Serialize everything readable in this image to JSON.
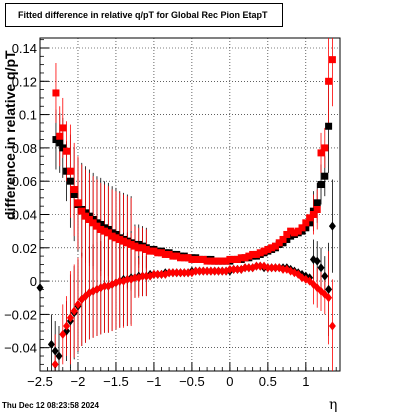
{
  "chart_data": {
    "type": "scatter",
    "title": "Fitted difference in relative q/pT for Global Rec Pion EtapT",
    "xlabel": "η",
    "ylabel": "difference in relative q/pT",
    "xlim": [
      -2.5,
      1.45
    ],
    "ylim": [
      -0.054,
      0.146
    ],
    "x_ticks": [
      -2.5,
      -2,
      -1.5,
      -1,
      -0.5,
      0,
      0.5,
      1
    ],
    "x_tick_labels": [
      "−2.5",
      "−2",
      "−1.5",
      "−1",
      "−0.5",
      "0",
      "0.5",
      "1"
    ],
    "y_ticks": [
      -0.04,
      -0.02,
      0,
      0.02,
      0.04,
      0.06,
      0.08,
      0.1,
      0.12,
      0.14
    ],
    "y_tick_labels": [
      "−0.04",
      "−0.02",
      "0",
      "0.02",
      "0.04",
      "0.06",
      "0.08",
      "0.1",
      "0.12",
      "0.14"
    ],
    "grid": true,
    "series": [
      {
        "marker": "square",
        "color": "#000000",
        "points": [
          [
            -2.29,
            0.085
          ],
          [
            -2.24,
            0.083
          ],
          [
            -2.2,
            0.08
          ],
          [
            -2.15,
            0.066
          ],
          [
            -2.1,
            0.06
          ],
          [
            -2.05,
            0.052
          ],
          [
            -2.0,
            0.046
          ],
          [
            -1.95,
            0.043
          ],
          [
            -1.9,
            0.041
          ],
          [
            -1.85,
            0.039
          ],
          [
            -1.8,
            0.037
          ],
          [
            -1.75,
            0.035
          ],
          [
            -1.7,
            0.034
          ],
          [
            -1.65,
            0.032
          ],
          [
            -1.6,
            0.031
          ],
          [
            -1.55,
            0.029
          ],
          [
            -1.5,
            0.028
          ],
          [
            -1.45,
            0.026
          ],
          [
            -1.4,
            0.025
          ],
          [
            -1.35,
            0.024
          ],
          [
            -1.3,
            0.023
          ],
          [
            -1.25,
            0.022
          ],
          [
            -1.2,
            0.022
          ],
          [
            -1.15,
            0.021
          ],
          [
            -1.1,
            0.02
          ],
          [
            -1.05,
            0.019
          ],
          [
            -1.0,
            0.019
          ],
          [
            -0.95,
            0.018
          ],
          [
            -0.9,
            0.018
          ],
          [
            -0.85,
            0.017
          ],
          [
            -0.8,
            0.017
          ],
          [
            -0.75,
            0.016
          ],
          [
            -0.7,
            0.016
          ],
          [
            -0.65,
            0.015
          ],
          [
            -0.6,
            0.015
          ],
          [
            -0.55,
            0.014
          ],
          [
            -0.5,
            0.014
          ],
          [
            -0.45,
            0.014
          ],
          [
            -0.4,
            0.013
          ],
          [
            -0.35,
            0.013
          ],
          [
            -0.3,
            0.013
          ],
          [
            -0.25,
            0.013
          ],
          [
            -0.2,
            0.012
          ],
          [
            -0.15,
            0.012
          ],
          [
            -0.1,
            0.012
          ],
          [
            -0.05,
            0.012
          ],
          [
            0.0,
            0.012
          ],
          [
            0.05,
            0.013
          ],
          [
            0.1,
            0.013
          ],
          [
            0.15,
            0.013
          ],
          [
            0.2,
            0.014
          ],
          [
            0.25,
            0.014
          ],
          [
            0.3,
            0.015
          ],
          [
            0.35,
            0.015
          ],
          [
            0.4,
            0.016
          ],
          [
            0.45,
            0.017
          ],
          [
            0.5,
            0.018
          ],
          [
            0.55,
            0.019
          ],
          [
            0.6,
            0.02
          ],
          [
            0.65,
            0.022
          ],
          [
            0.7,
            0.023
          ],
          [
            0.75,
            0.025
          ],
          [
            0.8,
            0.027
          ],
          [
            0.85,
            0.028
          ],
          [
            0.9,
            0.029
          ],
          [
            0.95,
            0.03
          ],
          [
            1.0,
            0.032
          ],
          [
            1.05,
            0.035
          ],
          [
            1.1,
            0.042
          ],
          [
            1.15,
            0.047
          ],
          [
            1.2,
            0.058
          ],
          [
            1.25,
            0.063
          ],
          [
            1.3,
            0.093
          ]
        ]
      },
      {
        "marker": "square",
        "color": "#ff0000",
        "points": [
          [
            -2.29,
            0.113
          ],
          [
            -2.24,
            0.087
          ],
          [
            -2.2,
            0.092
          ],
          [
            -2.15,
            0.078
          ],
          [
            -2.1,
            0.066
          ],
          [
            -2.05,
            0.055
          ],
          [
            -2.0,
            0.047
          ],
          [
            -1.95,
            0.042
          ],
          [
            -1.9,
            0.039
          ],
          [
            -1.85,
            0.037
          ],
          [
            -1.8,
            0.035
          ],
          [
            -1.75,
            0.033
          ],
          [
            -1.7,
            0.031
          ],
          [
            -1.65,
            0.03
          ],
          [
            -1.6,
            0.029
          ],
          [
            -1.55,
            0.027
          ],
          [
            -1.5,
            0.026
          ],
          [
            -1.45,
            0.025
          ],
          [
            -1.4,
            0.024
          ],
          [
            -1.35,
            0.023
          ],
          [
            -1.3,
            0.022
          ],
          [
            -1.25,
            0.021
          ],
          [
            -1.2,
            0.02
          ],
          [
            -1.15,
            0.02
          ],
          [
            -1.1,
            0.019
          ],
          [
            -1.05,
            0.018
          ],
          [
            -1.0,
            0.018
          ],
          [
            -0.95,
            0.017
          ],
          [
            -0.9,
            0.017
          ],
          [
            -0.85,
            0.016
          ],
          [
            -0.8,
            0.016
          ],
          [
            -0.75,
            0.015
          ],
          [
            -0.7,
            0.015
          ],
          [
            -0.65,
            0.014
          ],
          [
            -0.6,
            0.014
          ],
          [
            -0.55,
            0.014
          ],
          [
            -0.5,
            0.013
          ],
          [
            -0.45,
            0.013
          ],
          [
            -0.4,
            0.013
          ],
          [
            -0.35,
            0.013
          ],
          [
            -0.3,
            0.012
          ],
          [
            -0.25,
            0.012
          ],
          [
            -0.2,
            0.012
          ],
          [
            -0.15,
            0.012
          ],
          [
            -0.1,
            0.012
          ],
          [
            -0.05,
            0.012
          ],
          [
            0.0,
            0.013
          ],
          [
            0.05,
            0.013
          ],
          [
            0.1,
            0.013
          ],
          [
            0.15,
            0.014
          ],
          [
            0.2,
            0.014
          ],
          [
            0.25,
            0.015
          ],
          [
            0.3,
            0.016
          ],
          [
            0.35,
            0.016
          ],
          [
            0.4,
            0.017
          ],
          [
            0.45,
            0.018
          ],
          [
            0.5,
            0.019
          ],
          [
            0.55,
            0.02
          ],
          [
            0.6,
            0.021
          ],
          [
            0.65,
            0.023
          ],
          [
            0.7,
            0.025
          ],
          [
            0.75,
            0.028
          ],
          [
            0.8,
            0.03
          ],
          [
            0.85,
            0.029
          ],
          [
            0.9,
            0.03
          ],
          [
            0.95,
            0.032
          ],
          [
            1.0,
            0.035
          ],
          [
            1.05,
            0.038
          ],
          [
            1.1,
            0.04
          ],
          [
            1.15,
            0.043
          ],
          [
            1.2,
            0.077
          ],
          [
            1.25,
            0.08
          ],
          [
            1.3,
            0.12
          ],
          [
            1.35,
            0.133
          ]
        ]
      },
      {
        "marker": "diamond",
        "color": "#000000",
        "points": [
          [
            -2.5,
            -0.004
          ],
          [
            -2.35,
            -0.038
          ],
          [
            -2.3,
            -0.042
          ],
          [
            -2.25,
            -0.045
          ],
          [
            -2.15,
            -0.03
          ],
          [
            -2.1,
            -0.024
          ],
          [
            -2.05,
            -0.019
          ],
          [
            -2.0,
            -0.015
          ],
          [
            -1.95,
            -0.011
          ],
          [
            -1.9,
            -0.009
          ],
          [
            -1.85,
            -0.007
          ],
          [
            -1.8,
            -0.006
          ],
          [
            -1.75,
            -0.005
          ],
          [
            -1.7,
            -0.004
          ],
          [
            -1.65,
            -0.003
          ],
          [
            -1.6,
            -0.003
          ],
          [
            -1.55,
            -0.002
          ],
          [
            -1.5,
            -0.001
          ],
          [
            -1.45,
            0.0
          ],
          [
            -1.4,
            0.001
          ],
          [
            -1.35,
            0.001
          ],
          [
            -1.3,
            0.002
          ],
          [
            -1.25,
            0.002
          ],
          [
            -1.2,
            0.003
          ],
          [
            -1.15,
            0.003
          ],
          [
            -1.1,
            0.003
          ],
          [
            -1.05,
            0.004
          ],
          [
            -1.0,
            0.004
          ],
          [
            -0.95,
            0.004
          ],
          [
            -0.9,
            0.004
          ],
          [
            -0.85,
            0.005
          ],
          [
            -0.8,
            0.005
          ],
          [
            -0.75,
            0.005
          ],
          [
            -0.7,
            0.005
          ],
          [
            -0.65,
            0.005
          ],
          [
            -0.6,
            0.005
          ],
          [
            -0.55,
            0.005
          ],
          [
            -0.5,
            0.006
          ],
          [
            -0.45,
            0.006
          ],
          [
            -0.4,
            0.006
          ],
          [
            -0.35,
            0.006
          ],
          [
            -0.3,
            0.006
          ],
          [
            -0.25,
            0.006
          ],
          [
            -0.2,
            0.006
          ],
          [
            -0.15,
            0.006
          ],
          [
            -0.1,
            0.006
          ],
          [
            -0.05,
            0.006
          ],
          [
            0.0,
            0.006
          ],
          [
            0.05,
            0.007
          ],
          [
            0.1,
            0.007
          ],
          [
            0.15,
            0.007
          ],
          [
            0.2,
            0.008
          ],
          [
            0.25,
            0.008
          ],
          [
            0.3,
            0.008
          ],
          [
            0.35,
            0.009
          ],
          [
            0.4,
            0.009
          ],
          [
            0.45,
            0.008
          ],
          [
            0.5,
            0.008
          ],
          [
            0.55,
            0.008
          ],
          [
            0.6,
            0.008
          ],
          [
            0.65,
            0.008
          ],
          [
            0.7,
            0.008
          ],
          [
            0.75,
            0.008
          ],
          [
            0.8,
            0.007
          ],
          [
            0.85,
            0.006
          ],
          [
            0.9,
            0.005
          ],
          [
            0.95,
            0.004
          ],
          [
            1.0,
            0.003
          ],
          [
            1.05,
            0.002
          ],
          [
            1.1,
            0.013
          ],
          [
            1.15,
            0.012
          ],
          [
            1.2,
            0.008
          ],
          [
            1.25,
            0.003
          ],
          [
            1.3,
            -0.005
          ],
          [
            1.35,
            0.033
          ]
        ]
      },
      {
        "marker": "diamond",
        "color": "#ff0000",
        "points": [
          [
            -2.3,
            -0.05
          ],
          [
            -2.2,
            -0.032
          ],
          [
            -2.15,
            -0.027
          ],
          [
            -2.1,
            -0.022
          ],
          [
            -2.05,
            -0.018
          ],
          [
            -2.0,
            -0.014
          ],
          [
            -1.95,
            -0.011
          ],
          [
            -1.9,
            -0.009
          ],
          [
            -1.85,
            -0.007
          ],
          [
            -1.8,
            -0.006
          ],
          [
            -1.75,
            -0.005
          ],
          [
            -1.7,
            -0.004
          ],
          [
            -1.65,
            -0.003
          ],
          [
            -1.6,
            -0.003
          ],
          [
            -1.55,
            -0.002
          ],
          [
            -1.5,
            -0.001
          ],
          [
            -1.45,
            0.0
          ],
          [
            -1.4,
            0.0
          ],
          [
            -1.35,
            0.001
          ],
          [
            -1.3,
            0.001
          ],
          [
            -1.25,
            0.002
          ],
          [
            -1.2,
            0.002
          ],
          [
            -1.15,
            0.003
          ],
          [
            -1.1,
            0.003
          ],
          [
            -1.05,
            0.003
          ],
          [
            -1.0,
            0.004
          ],
          [
            -0.95,
            0.004
          ],
          [
            -0.9,
            0.004
          ],
          [
            -0.85,
            0.004
          ],
          [
            -0.8,
            0.005
          ],
          [
            -0.75,
            0.005
          ],
          [
            -0.7,
            0.005
          ],
          [
            -0.65,
            0.005
          ],
          [
            -0.6,
            0.005
          ],
          [
            -0.55,
            0.005
          ],
          [
            -0.5,
            0.005
          ],
          [
            -0.45,
            0.006
          ],
          [
            -0.4,
            0.006
          ],
          [
            -0.35,
            0.006
          ],
          [
            -0.3,
            0.006
          ],
          [
            -0.25,
            0.006
          ],
          [
            -0.2,
            0.006
          ],
          [
            -0.15,
            0.006
          ],
          [
            -0.1,
            0.006
          ],
          [
            -0.05,
            0.006
          ],
          [
            0.0,
            0.007
          ],
          [
            0.05,
            0.007
          ],
          [
            0.1,
            0.007
          ],
          [
            0.15,
            0.007
          ],
          [
            0.2,
            0.008
          ],
          [
            0.25,
            0.008
          ],
          [
            0.3,
            0.008
          ],
          [
            0.35,
            0.009
          ],
          [
            0.4,
            0.009
          ],
          [
            0.45,
            0.009
          ],
          [
            0.5,
            0.008
          ],
          [
            0.55,
            0.008
          ],
          [
            0.6,
            0.008
          ],
          [
            0.65,
            0.008
          ],
          [
            0.7,
            0.007
          ],
          [
            0.75,
            0.007
          ],
          [
            0.8,
            0.006
          ],
          [
            0.85,
            0.005
          ],
          [
            0.9,
            0.004
          ],
          [
            0.95,
            0.002
          ],
          [
            1.0,
            0.001
          ],
          [
            1.05,
            0.0
          ],
          [
            1.1,
            -0.002
          ],
          [
            1.15,
            -0.004
          ],
          [
            1.2,
            -0.006
          ],
          [
            1.25,
            -0.008
          ],
          [
            1.3,
            -0.01
          ],
          [
            1.35,
            -0.027
          ]
        ]
      }
    ]
  },
  "footer": {
    "datestamp": "Thu Dec 12 08:23:58 2024"
  }
}
